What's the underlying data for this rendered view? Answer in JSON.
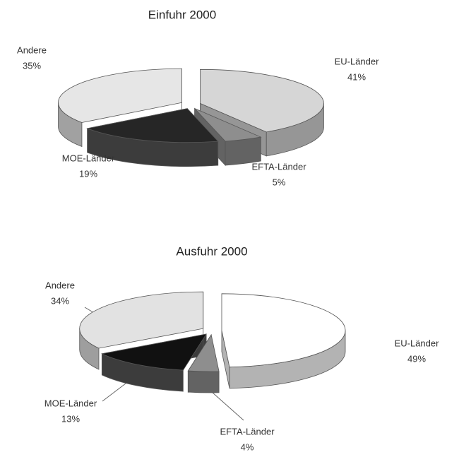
{
  "chart_data": [
    {
      "type": "pie",
      "title": "Einfuhr 2000",
      "categories": [
        "EU-Länder",
        "EFTA-Länder",
        "MOE-Länder",
        "Andere"
      ],
      "values": [
        41,
        5,
        19,
        35
      ],
      "value_labels": [
        "41%",
        "5%",
        "19%",
        "35%"
      ],
      "colors": [
        "#d6d6d6",
        "#8e8e8e",
        "#262626",
        "#e6e6e6"
      ]
    },
    {
      "type": "pie",
      "title": "Ausfuhr 2000",
      "categories": [
        "EU-Länder",
        "EFTA-Länder",
        "MOE-Länder",
        "Andere"
      ],
      "values": [
        49,
        4,
        13,
        34
      ],
      "value_labels": [
        "49%",
        "4%",
        "13%",
        "34%"
      ],
      "colors": [
        "#ffffff",
        "#8e8e8e",
        "#111111",
        "#e2e2e2"
      ]
    }
  ]
}
